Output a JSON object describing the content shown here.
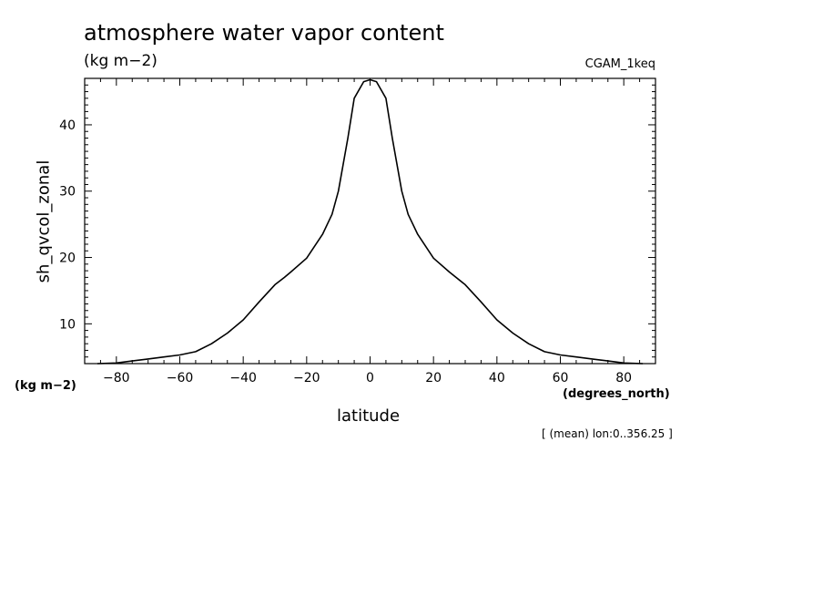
{
  "header": {
    "title": "atmosphere water vapor content",
    "units": "(kg m−2)",
    "dataset": "CGAM_1keq"
  },
  "footer": {
    "note": "[ (mean) lon:0..356.25 ]"
  },
  "chart_data": {
    "type": "line",
    "title": "atmosphere water vapor content",
    "subtitle": "(kg m−2)",
    "xlabel": "latitude",
    "xunit": "(degrees_north)",
    "ylabel": "sh_qvcol_zonal",
    "yunit": "(kg m−2)",
    "xlim": [
      -90,
      90
    ],
    "ylim": [
      4,
      47
    ],
    "xticks": [
      -80,
      -60,
      -40,
      -20,
      0,
      20,
      40,
      60,
      80
    ],
    "yticks": [
      10,
      20,
      30,
      40
    ],
    "xtick_labels": [
      "−80",
      "−60",
      "−40",
      "−20",
      "0",
      "20",
      "40",
      "60",
      "80"
    ],
    "ytick_labels": [
      "10",
      "20",
      "30",
      "40"
    ],
    "grid": false,
    "series": [
      {
        "x": [
          -86,
          -80,
          -75,
          -70,
          -65,
          -60,
          -55,
          -50,
          -45,
          -40,
          -35,
          -30,
          -27,
          -25,
          -20,
          -15,
          -12,
          -10,
          -7,
          -5,
          -2,
          0,
          2,
          5,
          7,
          10,
          12,
          15,
          20,
          25,
          30,
          35,
          40,
          45,
          50,
          55,
          60,
          65,
          70,
          75,
          80,
          86
        ],
        "y": [
          4.0,
          4.1,
          4.4,
          4.7,
          5.0,
          5.3,
          5.8,
          7.0,
          8.6,
          10.6,
          13.3,
          15.9,
          17.0,
          17.8,
          19.9,
          23.5,
          26.5,
          30.0,
          38.0,
          44.0,
          46.5,
          46.8,
          46.5,
          44.0,
          38.0,
          30.0,
          26.5,
          23.5,
          19.9,
          17.8,
          15.9,
          13.3,
          10.6,
          8.6,
          7.0,
          5.8,
          5.3,
          5.0,
          4.7,
          4.4,
          4.1,
          4.0
        ],
        "color": "#000000"
      }
    ]
  }
}
